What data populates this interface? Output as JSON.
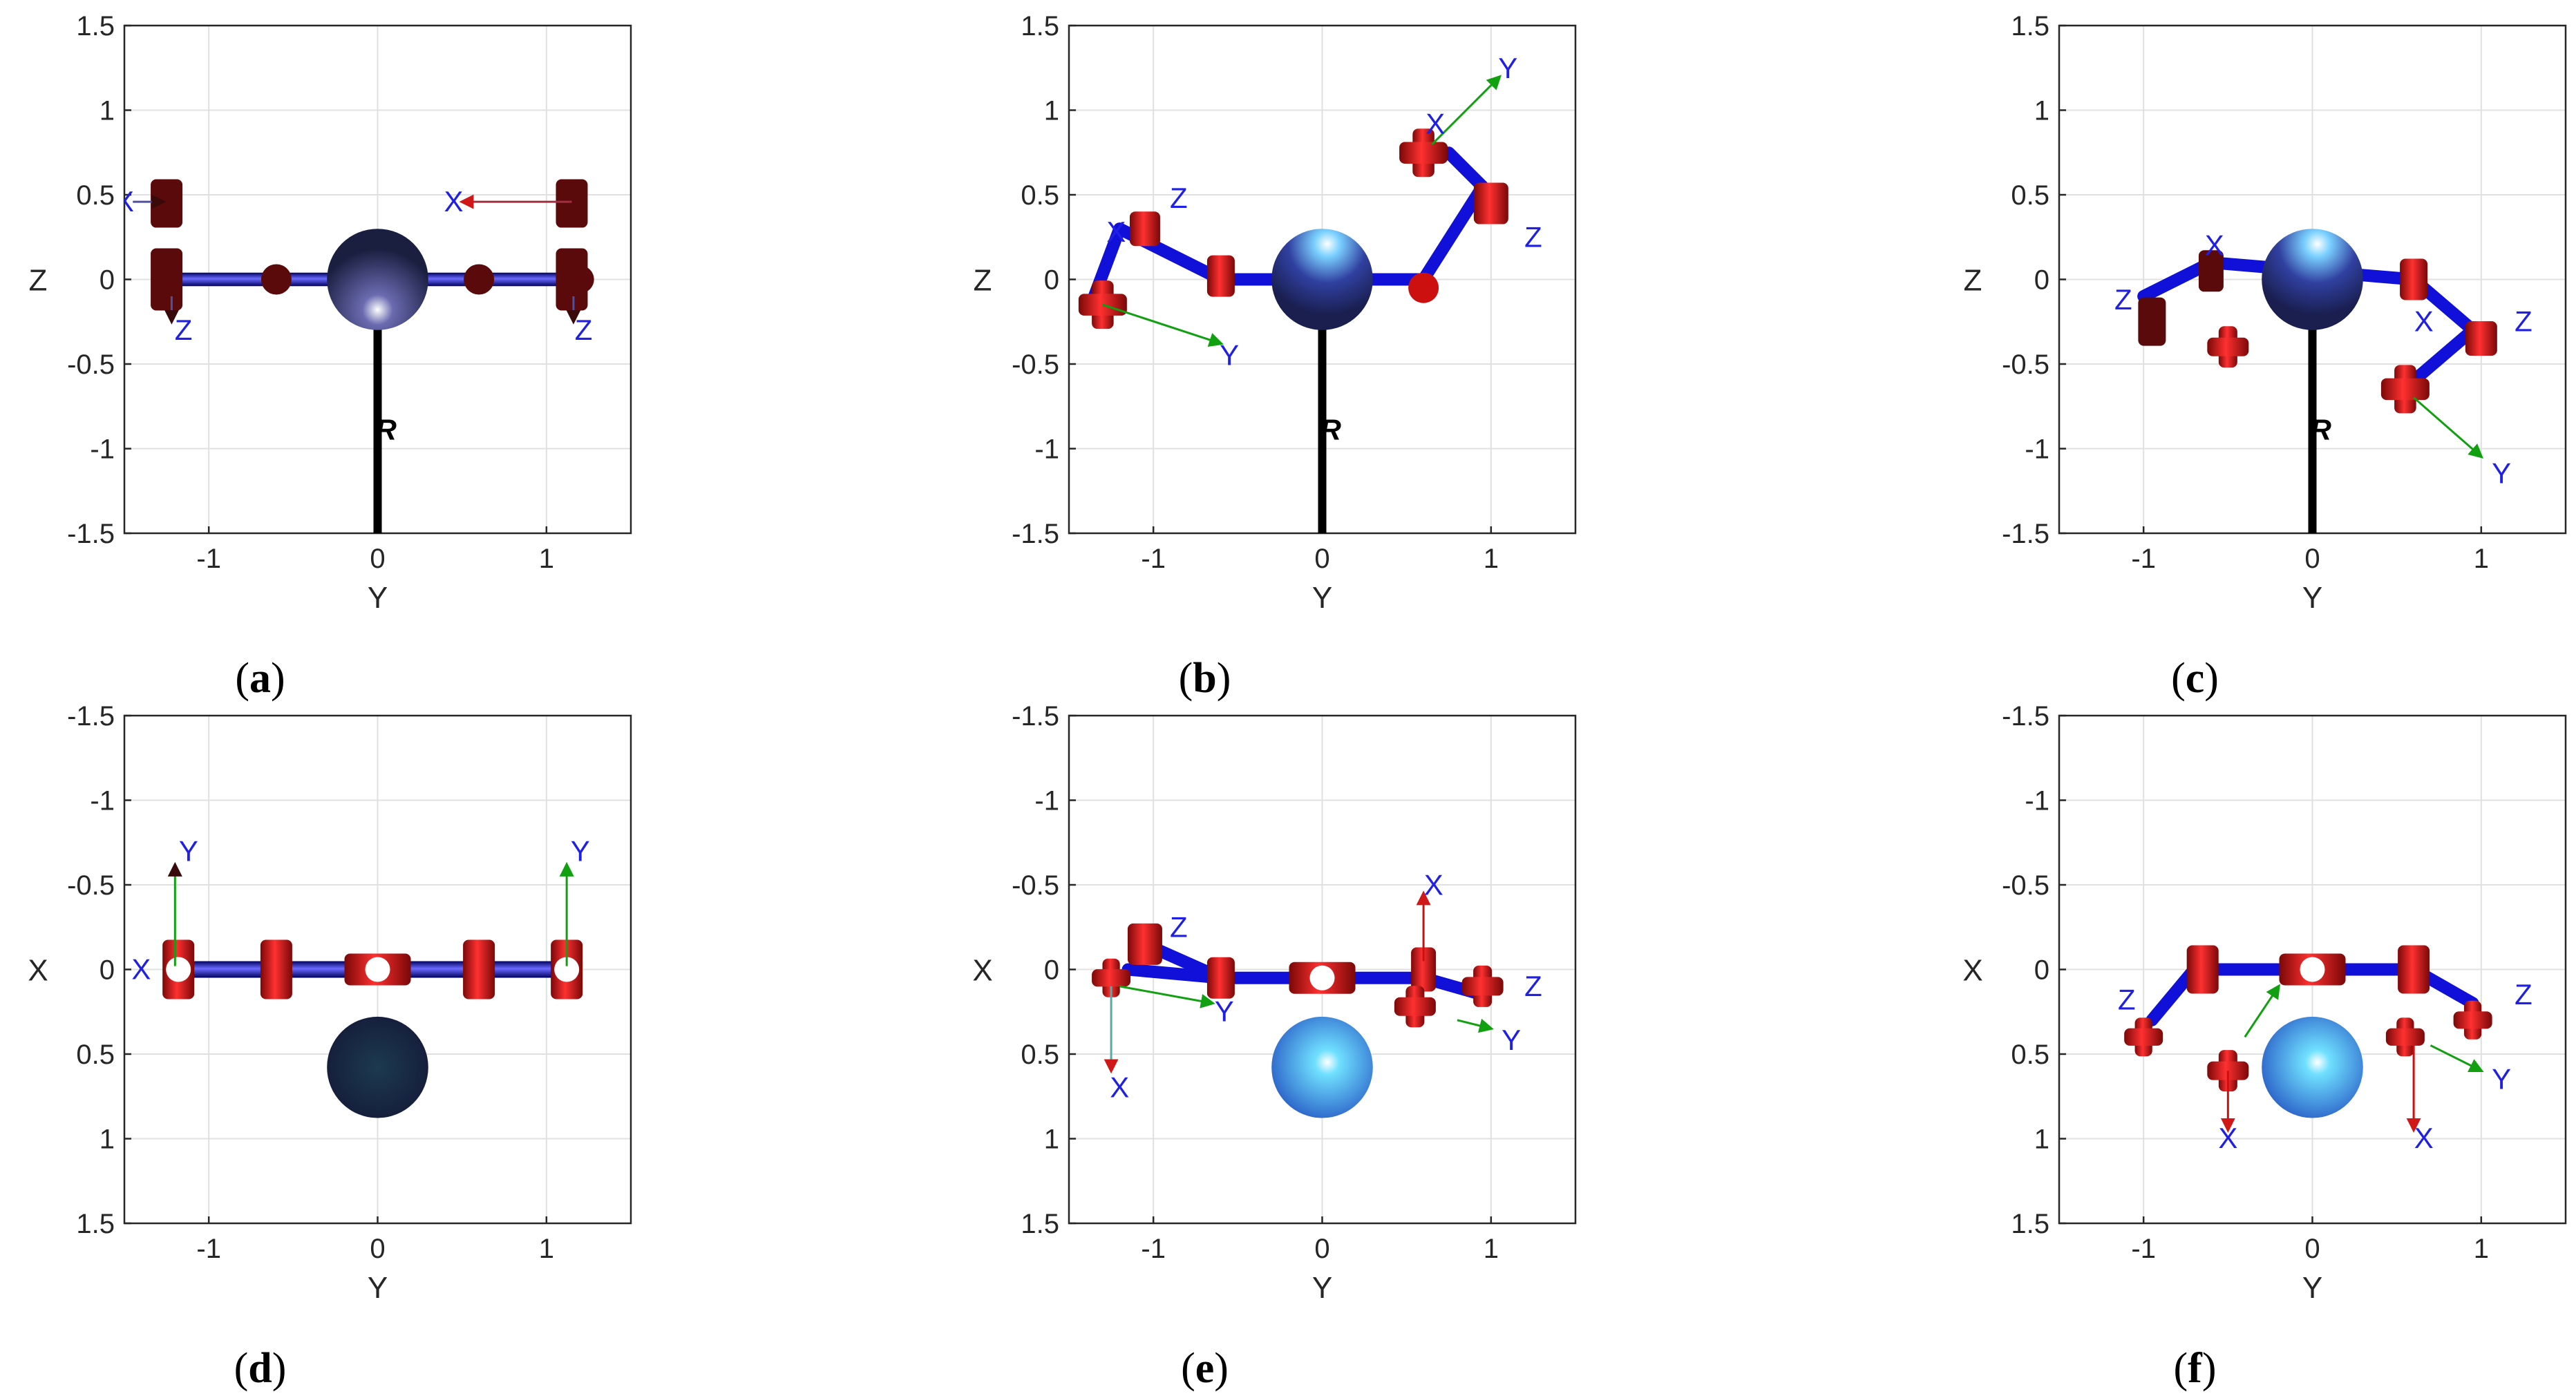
{
  "panels": [
    {
      "id": "a",
      "letter": "a",
      "xlabel": "Y",
      "ylabel": "Z",
      "xticks": [
        "-1",
        "0",
        "1"
      ],
      "yticks": [
        "1.5",
        "1",
        "0.5",
        "0",
        "-0.5",
        "-1",
        "-1.5"
      ],
      "sphere": "#202a4e"
    },
    {
      "id": "b",
      "letter": "b",
      "xlabel": "Y",
      "ylabel": "Z",
      "xticks": [
        "-1",
        "0",
        "1"
      ],
      "yticks": [
        "1.5",
        "1",
        "0.5",
        "0",
        "-0.5",
        "-1",
        "-1.5"
      ],
      "sphere": "#2a3280"
    },
    {
      "id": "c",
      "letter": "c",
      "xlabel": "Y",
      "ylabel": "Z",
      "xticks": [
        "-1",
        "0",
        "1"
      ],
      "yticks": [
        "1.5",
        "1",
        "0.5",
        "0",
        "-0.5",
        "-1",
        "-1.5"
      ],
      "sphere": "#2a3280"
    },
    {
      "id": "d",
      "letter": "d",
      "xlabel": "Y",
      "ylabel": "X",
      "xticks": [
        "-1",
        "0",
        "1"
      ],
      "yticks": [
        "-1.5",
        "-1",
        "-0.5",
        "0",
        "0.5",
        "1",
        "1.5"
      ],
      "sphere": "#1a2a48"
    },
    {
      "id": "e",
      "letter": "e",
      "xlabel": "Y",
      "ylabel": "X",
      "xticks": [
        "-1",
        "0",
        "1"
      ],
      "yticks": [
        "-1.5",
        "-1",
        "-0.5",
        "0",
        "0.5",
        "1",
        "1.5"
      ],
      "sphere": "#3a8ae0"
    },
    {
      "id": "f",
      "letter": "f",
      "xlabel": "Y",
      "ylabel": "X",
      "xticks": [
        "-1",
        "0",
        "1"
      ],
      "yticks": [
        "-1.5",
        "-1",
        "-0.5",
        "0",
        "0.5",
        "1",
        "1.5"
      ],
      "sphere": "#3a8ae0"
    }
  ],
  "frame_labels": {
    "x": "X",
    "y": "Y",
    "z": "Z"
  },
  "base_label": "R",
  "colors": {
    "link": "#1010d8",
    "joint": "#cc1010",
    "joint_dark": "#5a0a0a",
    "grid": "#e0e0e0",
    "axis_x": "#e05030",
    "axis_y": "#10a010",
    "axis_z": "#5050a0"
  }
}
